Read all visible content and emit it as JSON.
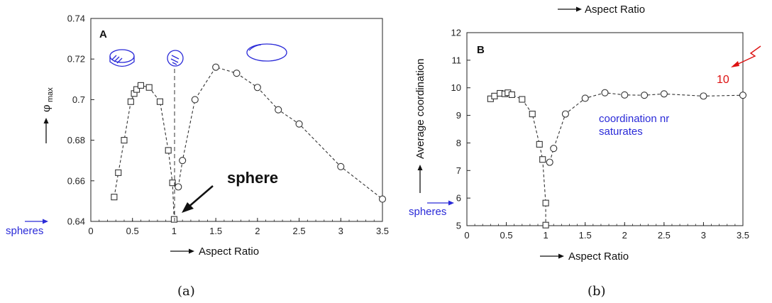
{
  "colors": {
    "axis": "#222222",
    "series": "#333333",
    "annotation_blue": "#2a2ad8",
    "annotation_red": "#dd1111"
  },
  "chart_data": [
    {
      "id": "a",
      "type": "scatter",
      "panel_label": "A",
      "caption": "(a)",
      "xlabel": "Aspect Ratio",
      "ylabel": "φmax",
      "ylabel_symbol": "φ",
      "ylabel_sub": "max",
      "xlim": [
        0,
        3.5
      ],
      "ylim": [
        0.64,
        0.74
      ],
      "xticks": [
        "0",
        "0.5",
        "1",
        "1.5",
        "2",
        "2.5",
        "3",
        "3.5"
      ],
      "yticks": [
        "0.64",
        "0.66",
        "0.68",
        "0.7",
        "0.72",
        "0.74"
      ],
      "annotations": {
        "sphere_label": "sphere",
        "spheres_label": "spheres"
      },
      "series": [
        {
          "marker": "square",
          "x": [
            0.28,
            0.33,
            0.4,
            0.48,
            0.52,
            0.55,
            0.6,
            0.7,
            0.83,
            0.93,
            0.98,
            1.0
          ],
          "y": [
            0.652,
            0.664,
            0.68,
            0.699,
            0.703,
            0.705,
            0.707,
            0.706,
            0.699,
            0.675,
            0.659,
            0.641
          ]
        },
        {
          "marker": "circle",
          "x": [
            1.05,
            1.1,
            1.25,
            1.5,
            1.75,
            2.0,
            2.25,
            2.5,
            3.0,
            3.5
          ],
          "y": [
            0.657,
            0.67,
            0.7,
            0.716,
            0.713,
            0.706,
            0.695,
            0.688,
            0.667,
            0.651
          ]
        }
      ]
    },
    {
      "id": "b",
      "type": "scatter",
      "panel_label": "B",
      "caption": "(b)",
      "xlabel": "Aspect Ratio",
      "top_label": "Aspect Ratio",
      "ylabel": "Average coordination",
      "xlim": [
        0,
        3.5
      ],
      "ylim": [
        5,
        12
      ],
      "xticks": [
        "0",
        "0.5",
        "1",
        "1.5",
        "2",
        "2.5",
        "3",
        "3.5"
      ],
      "yticks": [
        "5",
        "6",
        "7",
        "8",
        "9",
        "10",
        "11",
        "12"
      ],
      "annotations": {
        "saturates_line1": "coordination nr",
        "saturates_line2": "saturates",
        "ten_label": "10",
        "spheres_label": "spheres"
      },
      "series": [
        {
          "marker": "square",
          "x": [
            0.3,
            0.35,
            0.42,
            0.48,
            0.52,
            0.57,
            0.7,
            0.83,
            0.92,
            0.96,
            1.0,
            1.0
          ],
          "y": [
            9.6,
            9.7,
            9.8,
            9.78,
            9.82,
            9.75,
            9.58,
            9.05,
            7.95,
            7.4,
            5.82,
            5.02
          ]
        },
        {
          "marker": "circle",
          "x": [
            1.05,
            1.1,
            1.25,
            1.5,
            1.75,
            2.0,
            2.25,
            2.5,
            3.0,
            3.5
          ],
          "y": [
            7.3,
            7.8,
            9.05,
            9.62,
            9.82,
            9.74,
            9.73,
            9.78,
            9.7,
            9.73
          ]
        }
      ]
    }
  ]
}
